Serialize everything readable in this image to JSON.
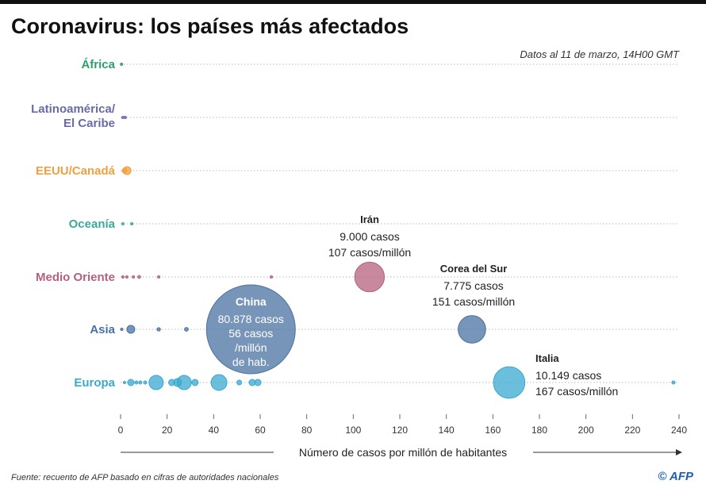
{
  "chart_data": {
    "type": "scatter",
    "title": "Coronavirus: los países más afectados",
    "subtitle": "Datos al 11 de marzo, 14H00 GMT",
    "xlabel": "Número de casos por millón de habitantes",
    "xlim": [
      0,
      240
    ],
    "xticks": [
      "0",
      "20",
      "40",
      "60",
      "80",
      "100",
      "120",
      "140",
      "160",
      "180",
      "200",
      "220",
      "240"
    ],
    "grid": "dotted row lines",
    "source": "Fuente: recuento de AFP basado en cifras de autoridades nacionales",
    "logo": "© AFP",
    "bubble_size": "número de casos",
    "regions": [
      {
        "name": [
          "África"
        ],
        "color": "#2e9e6b",
        "points": [
          {
            "x": 0.4,
            "cases": 30
          }
        ]
      },
      {
        "name": [
          "Latinoamérica/",
          "El Caribe"
        ],
        "color": "#6a6aa8",
        "points": [
          {
            "x": 1,
            "cases": 30
          },
          {
            "x": 2,
            "cases": 30
          }
        ]
      },
      {
        "name": [
          "EEUU/Canadá"
        ],
        "color": "#f0a040",
        "points": [
          {
            "x": 1.7,
            "cases": 230
          },
          {
            "x": 2.8,
            "cases": 645
          }
        ]
      },
      {
        "name": [
          "Oceanía"
        ],
        "color": "#3aaa9a",
        "points": [
          {
            "x": 1,
            "cases": 20
          },
          {
            "x": 4.8,
            "cases": 60
          }
        ]
      },
      {
        "name": [
          "Medio Oriente"
        ],
        "color": "#b5607e",
        "points": [
          {
            "x": 1,
            "cases": 30
          },
          {
            "x": 2.7,
            "cases": 30
          },
          {
            "x": 5.5,
            "cases": 60
          },
          {
            "x": 8,
            "cases": 90
          },
          {
            "x": 16.4,
            "cases": 40
          },
          {
            "x": 64.8,
            "cases": 60
          },
          {
            "x": 107,
            "cases": 9000
          }
        ]
      },
      {
        "name": [
          "Asia"
        ],
        "color": "#4a72a0",
        "points": [
          {
            "x": 0.5,
            "cases": 30
          },
          {
            "x": 4.4,
            "cases": 645
          },
          {
            "x": 16.4,
            "cases": 120
          },
          {
            "x": 28.3,
            "cases": 150
          },
          {
            "x": 56,
            "cases": 80878
          },
          {
            "x": 151,
            "cases": 7775
          }
        ]
      },
      {
        "name": [
          "Europa"
        ],
        "color": "#3aa8d0",
        "points": [
          {
            "x": 1.7,
            "cases": 60
          },
          {
            "x": 4.4,
            "cases": 413
          },
          {
            "x": 6.8,
            "cases": 100
          },
          {
            "x": 8.5,
            "cases": 100
          },
          {
            "x": 10.6,
            "cases": 100
          },
          {
            "x": 15.3,
            "cases": 2090
          },
          {
            "x": 22,
            "cases": 413
          },
          {
            "x": 24.5,
            "cases": 645
          },
          {
            "x": 27.3,
            "cases": 2090
          },
          {
            "x": 32,
            "cases": 413
          },
          {
            "x": 42.3,
            "cases": 2580
          },
          {
            "x": 51,
            "cases": 232
          },
          {
            "x": 56.6,
            "cases": 413
          },
          {
            "x": 59,
            "cases": 413
          },
          {
            "x": 167,
            "cases": 10149
          },
          {
            "x": 237.6,
            "cases": 103
          }
        ]
      }
    ],
    "annotations": [
      {
        "country": "China",
        "line1": "80.878 casos",
        "line2": "56 casos",
        "line3": "/millón",
        "line4": "de hab."
      },
      {
        "country": "Irán",
        "line1": "9.000 casos",
        "line2": "107 casos/millón"
      },
      {
        "country": "Corea del Sur",
        "line1": "7.775 casos",
        "line2": "151 casos/millón"
      },
      {
        "country": "Italia",
        "line1": "10.149 casos",
        "line2": "167 casos/millón"
      }
    ]
  }
}
